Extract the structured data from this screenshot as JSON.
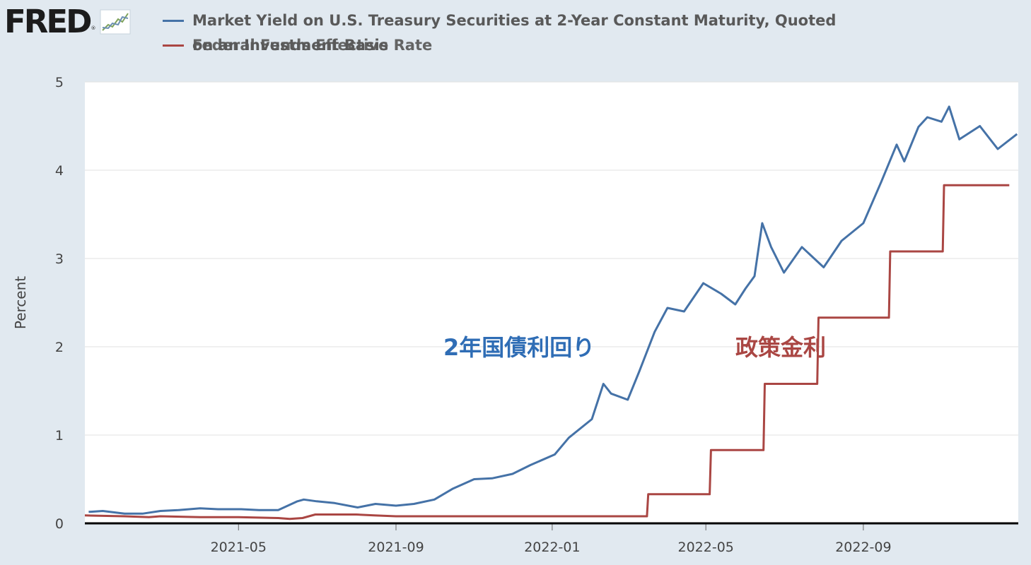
{
  "header": {
    "logo_text": "FRED",
    "logo_mark": "®",
    "logo_icon": "line-chart-icon"
  },
  "legend": [
    {
      "name": "Market Yield on U.S. Treasury Securities at 2-Year Constant Maturity, Quoted",
      "name_cont": "on an Investment Basis",
      "color": "#4572a7"
    },
    {
      "name": "Federal Funds Effective Rate",
      "color": "#aa4643"
    }
  ],
  "chart_data": {
    "type": "line",
    "ylabel": "Percent",
    "ylim": [
      0,
      5
    ],
    "yticks": [
      "0",
      "1",
      "2",
      "3",
      "4",
      "5"
    ],
    "xlim": [
      "2021-01-01",
      "2022-12-31"
    ],
    "xticks": [
      "2021-05",
      "2021-09",
      "2022-01",
      "2022-05",
      "2022-09"
    ],
    "grid": true,
    "annotations": [
      {
        "text": "2年国債利回り",
        "color": "#2f6db5"
      },
      {
        "text": "政策金利",
        "color": "#aa4643"
      }
    ],
    "series": [
      {
        "name": "Market Yield on U.S. Treasury Securities at 2-Year Constant Maturity, Quoted on an Investment Basis",
        "color": "#4572a7",
        "x": [
          "2021-01-04",
          "2021-01-15",
          "2021-02-01",
          "2021-02-15",
          "2021-03-01",
          "2021-03-15",
          "2021-04-01",
          "2021-04-15",
          "2021-05-03",
          "2021-05-17",
          "2021-06-01",
          "2021-06-16",
          "2021-06-21",
          "2021-07-01",
          "2021-07-15",
          "2021-08-02",
          "2021-08-16",
          "2021-09-01",
          "2021-09-15",
          "2021-10-01",
          "2021-10-15",
          "2021-11-01",
          "2021-11-15",
          "2021-12-01",
          "2021-12-15",
          "2022-01-03",
          "2022-01-14",
          "2022-02-01",
          "2022-02-10",
          "2022-02-16",
          "2022-03-01",
          "2022-03-10",
          "2022-03-22",
          "2022-04-01",
          "2022-04-14",
          "2022-04-29",
          "2022-05-13",
          "2022-05-24",
          "2022-06-01",
          "2022-06-08",
          "2022-06-14",
          "2022-06-21",
          "2022-07-01",
          "2022-07-15",
          "2022-08-01",
          "2022-08-15",
          "2022-09-01",
          "2022-09-15",
          "2022-09-27",
          "2022-10-03",
          "2022-10-14",
          "2022-10-21",
          "2022-11-01",
          "2022-11-07",
          "2022-11-15",
          "2022-12-01",
          "2022-12-15",
          "2022-12-30"
        ],
        "y": [
          0.13,
          0.14,
          0.11,
          0.11,
          0.14,
          0.15,
          0.17,
          0.16,
          0.16,
          0.15,
          0.15,
          0.25,
          0.27,
          0.25,
          0.23,
          0.18,
          0.22,
          0.2,
          0.22,
          0.27,
          0.39,
          0.5,
          0.51,
          0.56,
          0.66,
          0.78,
          0.97,
          1.18,
          1.58,
          1.47,
          1.4,
          1.72,
          2.17,
          2.44,
          2.4,
          2.72,
          2.6,
          2.48,
          2.66,
          2.8,
          3.4,
          3.13,
          2.84,
          3.13,
          2.9,
          3.2,
          3.4,
          3.87,
          4.29,
          4.1,
          4.49,
          4.6,
          4.55,
          4.72,
          4.35,
          4.5,
          4.24,
          4.41
        ]
      },
      {
        "name": "Federal Funds Effective Rate",
        "color": "#aa4643",
        "x": [
          "2021-01-01",
          "2021-02-01",
          "2021-02-20",
          "2021-03-01",
          "2021-04-01",
          "2021-05-01",
          "2021-06-01",
          "2021-06-10",
          "2021-06-20",
          "2021-06-30",
          "2021-08-01",
          "2021-08-15",
          "2021-09-01",
          "2021-12-31",
          "2022-03-16",
          "2022-03-17",
          "2022-05-04",
          "2022-05-05",
          "2022-06-15",
          "2022-06-16",
          "2022-07-27",
          "2022-07-28",
          "2022-09-21",
          "2022-09-22",
          "2022-11-02",
          "2022-11-03",
          "2022-12-24"
        ],
        "y": [
          0.09,
          0.08,
          0.07,
          0.08,
          0.07,
          0.07,
          0.06,
          0.05,
          0.06,
          0.1,
          0.1,
          0.09,
          0.08,
          0.08,
          0.08,
          0.33,
          0.33,
          0.83,
          0.83,
          1.58,
          1.58,
          2.33,
          2.33,
          3.08,
          3.08,
          3.83,
          3.83
        ]
      }
    ]
  }
}
